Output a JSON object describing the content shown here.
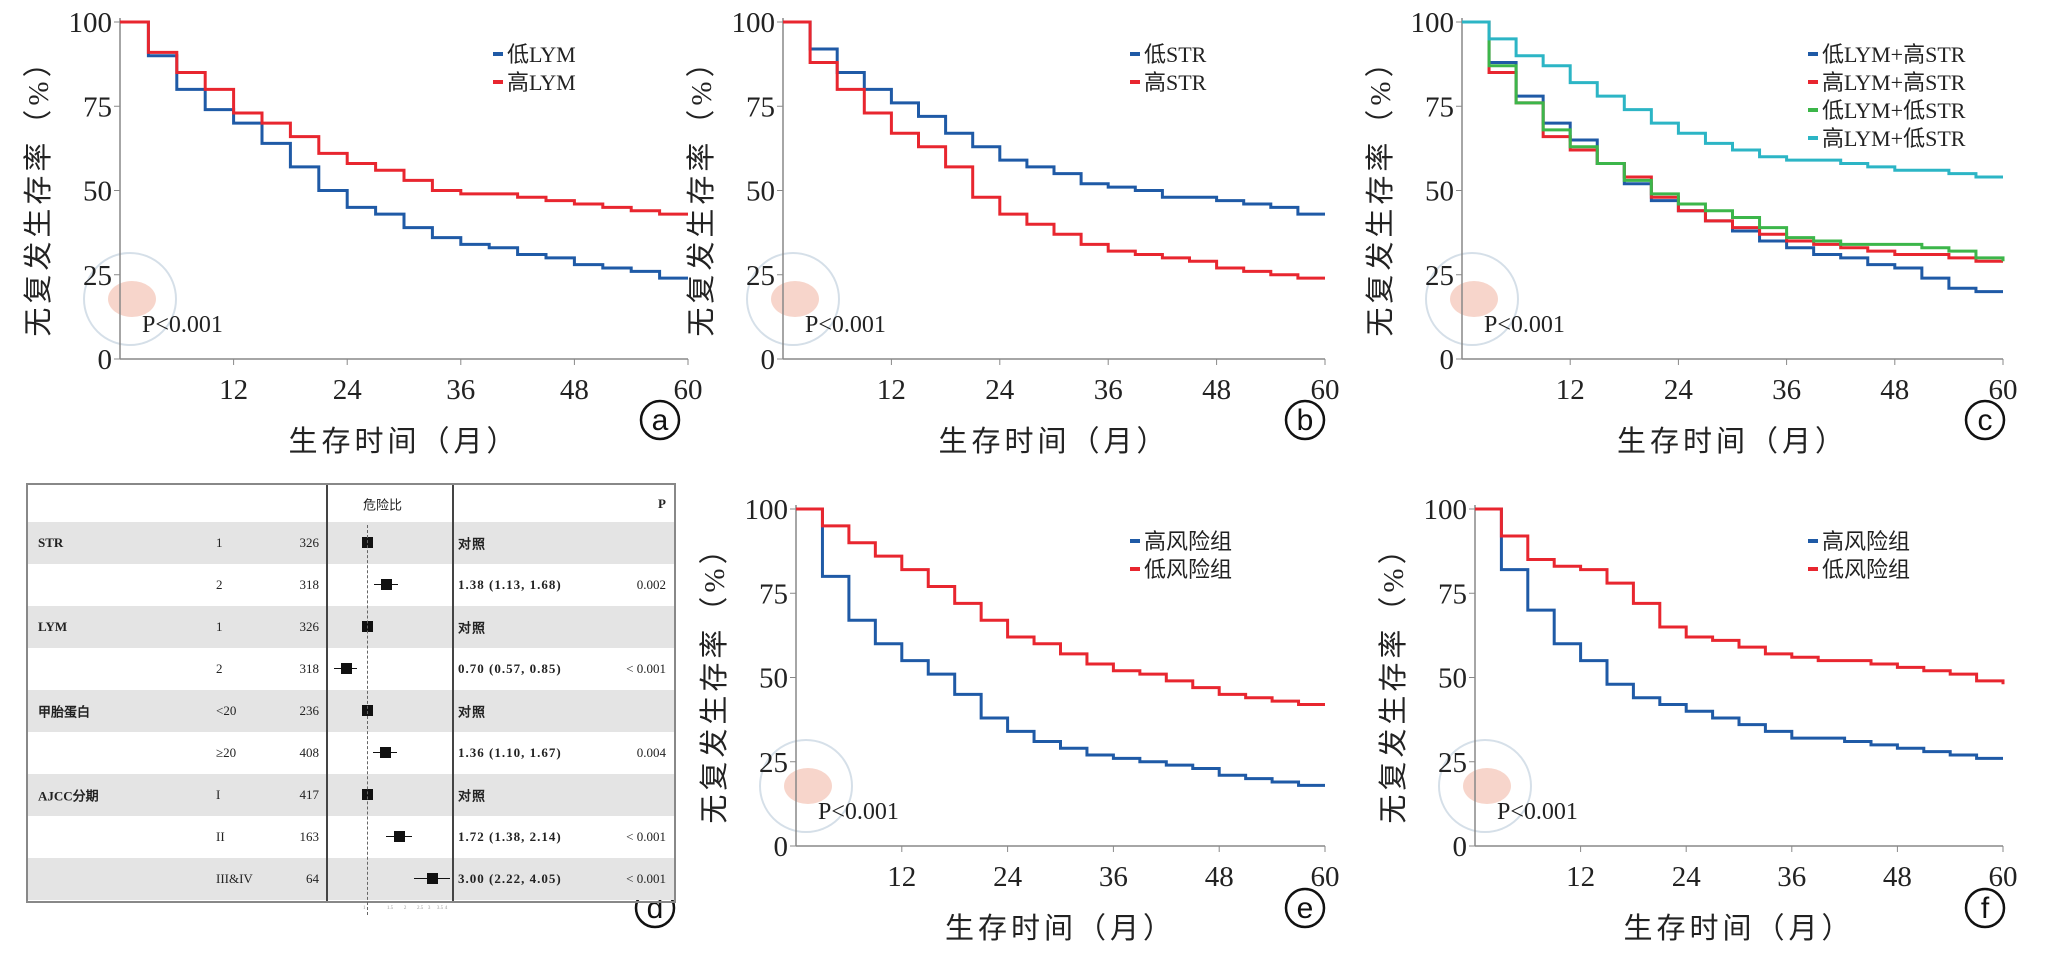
{
  "colors": {
    "blue": "#1f5aa6",
    "red": "#e8262f",
    "green": "#3cb64a",
    "cyan": "#2cb5c5"
  },
  "chart_data": [
    {
      "panel": "a",
      "type": "line",
      "step": true,
      "ylabel": "无复发生存率（%）",
      "xlabel": "生存时间（月）",
      "xlim": [
        0,
        60
      ],
      "ylim": [
        0,
        100
      ],
      "xticks": [
        12,
        24,
        36,
        48,
        60
      ],
      "yticks": [
        0,
        25,
        50,
        75,
        100
      ],
      "annotation": "P<0.001",
      "legend_position": "top-right",
      "x": [
        0,
        3,
        6,
        9,
        12,
        15,
        18,
        21,
        24,
        27,
        30,
        33,
        36,
        39,
        42,
        45,
        48,
        51,
        54,
        57,
        60
      ],
      "series": [
        {
          "name": "低LYM",
          "color": "#1f5aa6",
          "values": [
            100,
            90,
            80,
            74,
            70,
            64,
            57,
            50,
            45,
            43,
            39,
            36,
            34,
            33,
            31,
            30,
            28,
            27,
            26,
            24,
            24
          ]
        },
        {
          "name": "高LYM",
          "color": "#e8262f",
          "values": [
            100,
            91,
            85,
            80,
            73,
            70,
            66,
            61,
            58,
            56,
            53,
            50,
            49,
            49,
            48,
            47,
            46,
            45,
            44,
            43,
            43
          ]
        }
      ]
    },
    {
      "panel": "b",
      "type": "line",
      "step": true,
      "ylabel": "无复发生存率（%）",
      "xlabel": "生存时间（月）",
      "xlim": [
        0,
        60
      ],
      "ylim": [
        0,
        100
      ],
      "xticks": [
        12,
        24,
        36,
        48,
        60
      ],
      "yticks": [
        0,
        25,
        50,
        75,
        100
      ],
      "annotation": "P<0.001",
      "legend_position": "top-right",
      "x": [
        0,
        3,
        6,
        9,
        12,
        15,
        18,
        21,
        24,
        27,
        30,
        33,
        36,
        39,
        42,
        45,
        48,
        51,
        54,
        57,
        60
      ],
      "series": [
        {
          "name": "低STR",
          "color": "#1f5aa6",
          "values": [
            100,
            92,
            85,
            80,
            76,
            72,
            67,
            63,
            59,
            57,
            55,
            52,
            51,
            50,
            48,
            48,
            47,
            46,
            45,
            43,
            43
          ]
        },
        {
          "name": "高STR",
          "color": "#e8262f",
          "values": [
            100,
            88,
            80,
            73,
            67,
            63,
            57,
            48,
            43,
            40,
            37,
            34,
            32,
            31,
            30,
            29,
            27,
            26,
            25,
            24,
            24
          ]
        }
      ]
    },
    {
      "panel": "c",
      "type": "line",
      "step": true,
      "ylabel": "无复发生存率（%）",
      "xlabel": "生存时间（月）",
      "xlim": [
        0,
        60
      ],
      "ylim": [
        0,
        100
      ],
      "xticks": [
        12,
        24,
        36,
        48,
        60
      ],
      "yticks": [
        0,
        25,
        50,
        75,
        100
      ],
      "annotation": "P<0.001",
      "legend_position": "top-right",
      "x": [
        0,
        3,
        6,
        9,
        12,
        15,
        18,
        21,
        24,
        27,
        30,
        33,
        36,
        39,
        42,
        45,
        48,
        51,
        54,
        57,
        60
      ],
      "series": [
        {
          "name": "低LYM+高STR",
          "color": "#1f5aa6",
          "values": [
            100,
            88,
            78,
            70,
            65,
            58,
            52,
            47,
            44,
            41,
            38,
            35,
            33,
            31,
            30,
            28,
            27,
            24,
            21,
            20,
            20
          ]
        },
        {
          "name": "高LYM+高STR",
          "color": "#e8262f",
          "values": [
            100,
            85,
            76,
            66,
            62,
            58,
            54,
            48,
            44,
            41,
            39,
            37,
            35,
            34,
            33,
            32,
            31,
            31,
            30,
            29,
            29
          ]
        },
        {
          "name": "低LYM+低STR",
          "color": "#3cb64a",
          "values": [
            100,
            87,
            76,
            68,
            63,
            58,
            53,
            49,
            46,
            44,
            42,
            39,
            36,
            35,
            34,
            34,
            34,
            33,
            32,
            30,
            29
          ]
        },
        {
          "name": "高LYM+低STR",
          "color": "#2cb5c5",
          "values": [
            100,
            95,
            90,
            87,
            82,
            78,
            74,
            70,
            67,
            64,
            62,
            60,
            59,
            59,
            58,
            57,
            56,
            56,
            55,
            54,
            54
          ]
        }
      ]
    },
    {
      "panel": "e",
      "type": "line",
      "step": true,
      "ylabel": "无复发生存率（%）",
      "xlabel": "生存时间（月）",
      "xlim": [
        0,
        60
      ],
      "ylim": [
        0,
        100
      ],
      "xticks": [
        12,
        24,
        36,
        48,
        60
      ],
      "yticks": [
        0,
        25,
        50,
        75,
        100
      ],
      "annotation": "P<0.001",
      "legend_position": "top-right",
      "x": [
        0,
        3,
        6,
        9,
        12,
        15,
        18,
        21,
        24,
        27,
        30,
        33,
        36,
        39,
        42,
        45,
        48,
        51,
        54,
        57,
        60
      ],
      "series": [
        {
          "name": "高风险组",
          "color": "#1f5aa6",
          "values": [
            100,
            80,
            67,
            60,
            55,
            51,
            45,
            38,
            34,
            31,
            29,
            27,
            26,
            25,
            24,
            23,
            21,
            20,
            19,
            18,
            18
          ]
        },
        {
          "name": "低风险组",
          "color": "#e8262f",
          "values": [
            100,
            95,
            90,
            86,
            82,
            77,
            72,
            67,
            62,
            60,
            57,
            54,
            52,
            51,
            49,
            47,
            45,
            44,
            43,
            42,
            42
          ]
        }
      ]
    },
    {
      "panel": "f",
      "type": "line",
      "step": true,
      "ylabel": "无复发生存率（%）",
      "xlabel": "生存时间（月）",
      "xlim": [
        0,
        60
      ],
      "ylim": [
        0,
        100
      ],
      "xticks": [
        12,
        24,
        36,
        48,
        60
      ],
      "yticks": [
        0,
        25,
        50,
        75,
        100
      ],
      "annotation": "P<0.001",
      "legend_position": "top-right",
      "x": [
        0,
        3,
        6,
        9,
        12,
        15,
        18,
        21,
        24,
        27,
        30,
        33,
        36,
        39,
        42,
        45,
        48,
        51,
        54,
        57,
        60
      ],
      "series": [
        {
          "name": "高风险组",
          "color": "#1f5aa6",
          "values": [
            100,
            82,
            70,
            60,
            55,
            48,
            44,
            42,
            40,
            38,
            36,
            34,
            32,
            32,
            31,
            30,
            29,
            28,
            27,
            26,
            26
          ]
        },
        {
          "name": "低风险组",
          "color": "#e8262f",
          "values": [
            100,
            92,
            85,
            83,
            82,
            78,
            72,
            65,
            62,
            61,
            59,
            57,
            56,
            55,
            55,
            54,
            53,
            52,
            51,
            49,
            48
          ]
        }
      ]
    },
    {
      "panel": "d",
      "type": "table",
      "header": {
        "hr": "危险比",
        "p": "P"
      },
      "reference_hr": 1,
      "xticks": [
        "1",
        "1.5",
        "2",
        "2.5",
        "3",
        "3.5",
        "4"
      ],
      "rows": [
        {
          "variable": "STR",
          "level": "1",
          "n": "326",
          "hr": 1,
          "lo": 1,
          "hi": 1,
          "hr_text": "对照",
          "p": ""
        },
        {
          "variable": "",
          "level": "2",
          "n": "318",
          "hr": 1.38,
          "lo": 1.13,
          "hi": 1.68,
          "hr_text": "1.38 (1.13, 1.68)",
          "p": "0.002"
        },
        {
          "variable": "LYM",
          "level": "1",
          "n": "326",
          "hr": 1,
          "lo": 1,
          "hi": 1,
          "hr_text": "对照",
          "p": ""
        },
        {
          "variable": "",
          "level": "2",
          "n": "318",
          "hr": 0.7,
          "lo": 0.57,
          "hi": 0.85,
          "hr_text": "0.70 (0.57, 0.85)",
          "p": "< 0.001"
        },
        {
          "variable": "甲胎蛋白",
          "level": "<20",
          "n": "236",
          "hr": 1,
          "lo": 1,
          "hi": 1,
          "hr_text": "对照",
          "p": ""
        },
        {
          "variable": "",
          "level": "≥20",
          "n": "408",
          "hr": 1.36,
          "lo": 1.1,
          "hi": 1.67,
          "hr_text": "1.36 (1.10, 1.67)",
          "p": "0.004"
        },
        {
          "variable": "AJCC分期",
          "level": "I",
          "n": "417",
          "hr": 1,
          "lo": 1,
          "hi": 1,
          "hr_text": "对照",
          "p": ""
        },
        {
          "variable": "",
          "level": "II",
          "n": "163",
          "hr": 1.72,
          "lo": 1.38,
          "hi": 2.14,
          "hr_text": "1.72 (1.38, 2.14)",
          "p": "< 0.001"
        },
        {
          "variable": "",
          "level": "III&IV",
          "n": "64",
          "hr": 3.0,
          "lo": 2.22,
          "hi": 4.05,
          "hr_text": "3.00 (2.22, 4.05)",
          "p": "< 0.001"
        }
      ]
    }
  ]
}
